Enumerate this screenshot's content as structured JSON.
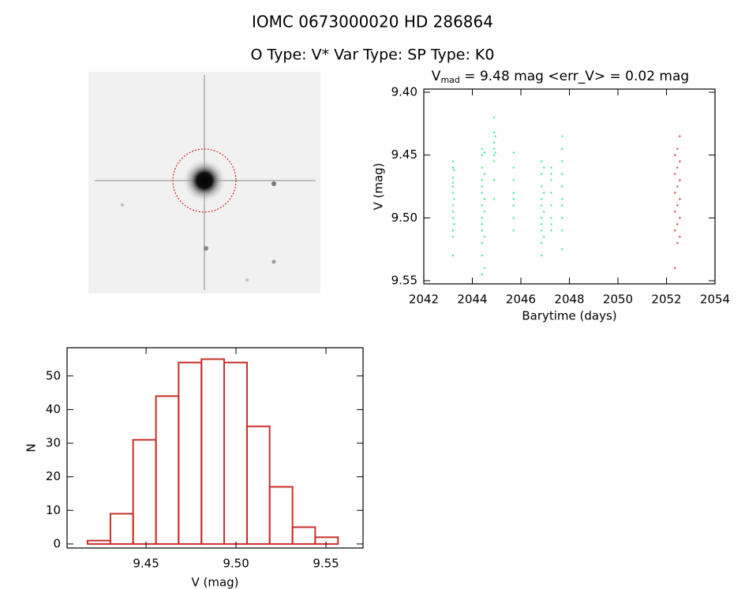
{
  "header": {
    "title": "IOMC 0673000020    HD 286864",
    "subtitle": "O Type: V*  Var Type:    SP Type: K0"
  },
  "chart_data": [
    {
      "type": "scatter",
      "title_main": "V",
      "title_sub": "mad",
      "title_rest": " = 9.48 mag <err_V> = 0.02 mag",
      "xlabel": "Barytime (days)",
      "ylabel": "V (mag)",
      "xlim": [
        2042,
        2054
      ],
      "xticks": [
        2042,
        2044,
        2046,
        2048,
        2050,
        2052,
        2054
      ],
      "ylim": [
        9.5525,
        9.3975
      ],
      "inverted_y": true,
      "yticks": [
        {
          "value": 9.4,
          "label": "9.40"
        },
        9.45,
        {
          "value": 9.5,
          "label": "9.50"
        },
        9.55
      ],
      "series": [
        {
          "color": "#2ee384",
          "x": [
            2043.2,
            2043.2,
            2043.2,
            2043.2,
            2043.2,
            2043.2,
            2043.2,
            2043.2,
            2043.2,
            2043.2,
            2043.2,
            2043.2,
            2043.25,
            2043.25,
            2043.25,
            2044.4,
            2044.4,
            2044.4,
            2044.4,
            2044.4,
            2044.4,
            2044.4,
            2044.4,
            2044.4,
            2044.4,
            2044.4,
            2044.4,
            2044.4,
            2044.5,
            2044.5,
            2044.5,
            2044.5,
            2044.5,
            2044.5,
            2044.9,
            2044.9,
            2044.9,
            2044.9,
            2044.9,
            2044.9,
            2044.9,
            2044.9,
            2044.95,
            2044.95,
            2045.7,
            2045.7,
            2045.7,
            2045.7,
            2045.7,
            2045.7,
            2045.7,
            2045.7,
            2046.85,
            2046.85,
            2046.85,
            2046.85,
            2046.85,
            2046.85,
            2046.85,
            2046.85,
            2046.85,
            2046.85,
            2046.95,
            2046.95,
            2046.95,
            2046.95,
            2047.25,
            2047.25,
            2047.25,
            2047.25,
            2047.25,
            2047.25,
            2047.25,
            2047.25,
            2047.7,
            2047.7,
            2047.7,
            2047.7,
            2047.7,
            2047.7,
            2047.7,
            2047.7,
            2047.7,
            2047.7
          ],
          "values": [
            9.455,
            9.46,
            9.468,
            9.472,
            9.475,
            9.48,
            9.49,
            9.495,
            9.5,
            9.51,
            9.515,
            9.53,
            9.462,
            9.485,
            9.505,
            9.445,
            9.45,
            9.46,
            9.47,
            9.475,
            9.48,
            9.49,
            9.5,
            9.505,
            9.51,
            9.52,
            9.53,
            9.545,
            9.448,
            9.465,
            9.485,
            9.495,
            9.515,
            9.54,
            9.42,
            9.432,
            9.44,
            9.445,
            9.45,
            9.455,
            9.47,
            9.485,
            9.435,
            9.448,
            9.448,
            9.46,
            9.47,
            9.48,
            9.485,
            9.49,
            9.5,
            9.51,
            9.455,
            9.465,
            9.475,
            9.485,
            9.49,
            9.5,
            9.505,
            9.51,
            9.52,
            9.53,
            9.46,
            9.48,
            9.495,
            9.515,
            9.46,
            9.465,
            9.47,
            9.48,
            9.49,
            9.5,
            9.505,
            9.51,
            9.435,
            9.445,
            9.455,
            9.465,
            9.475,
            9.485,
            9.49,
            9.5,
            9.51,
            9.525
          ]
        },
        {
          "color": "#c8302a",
          "x": [
            2052.35,
            2052.45,
            2052.55,
            2052.35,
            2052.45,
            2052.55,
            2052.35,
            2052.45,
            2052.55,
            2052.35,
            2052.45,
            2052.55,
            2052.35,
            2052.45,
            2052.55,
            2052.35,
            2052.45,
            2052.55
          ],
          "values": [
            9.54,
            9.52,
            9.515,
            9.51,
            9.505,
            9.5,
            9.495,
            9.49,
            9.485,
            9.48,
            9.475,
            9.47,
            9.465,
            9.46,
            9.455,
            9.45,
            9.445,
            9.435
          ]
        }
      ]
    },
    {
      "type": "histogram",
      "xlabel": "V (mag)",
      "ylabel": "N",
      "color": "#c8302a",
      "xlim": [
        9.4061,
        9.5706
      ],
      "xticks": [
        9.45,
        {
          "value": 9.5,
          "label": "9.50"
        },
        9.55
      ],
      "ylim": [
        -1.2,
        58.4
      ],
      "yticks": [
        0,
        10,
        20,
        30,
        40,
        50
      ],
      "bins": [
        9.4175,
        9.4302,
        9.4428,
        9.4555,
        9.4681,
        9.4808,
        9.4934,
        9.5061,
        9.5187,
        9.5314,
        9.544,
        9.5567
      ],
      "counts": [
        1,
        9,
        31,
        44,
        54,
        55,
        54,
        35,
        17,
        5,
        2
      ]
    }
  ]
}
